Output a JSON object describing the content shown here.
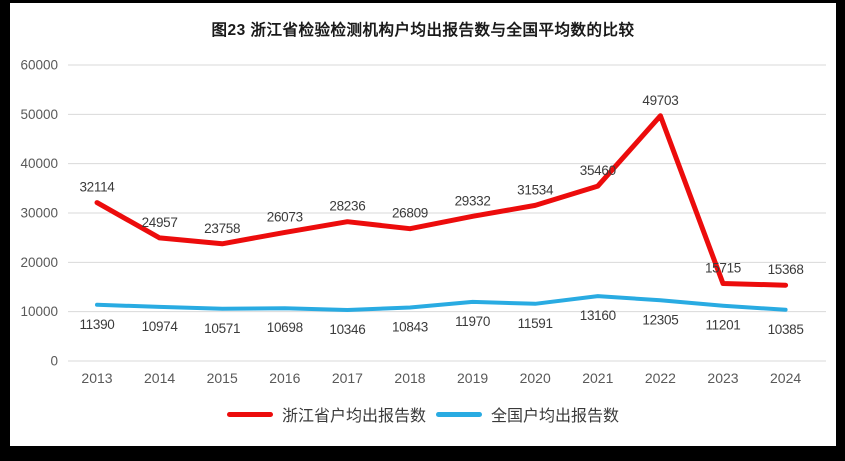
{
  "frame": {
    "border_color": "#000000",
    "background_color": "#ffffff"
  },
  "chart_data": {
    "type": "line",
    "title": "图23  浙江省检验检测机构户均出报告数与全国平均数的比较",
    "categories": [
      "2013",
      "2014",
      "2015",
      "2016",
      "2017",
      "2018",
      "2019",
      "2020",
      "2021",
      "2022",
      "2023",
      "2024"
    ],
    "series": [
      {
        "name": "浙江省户均出报告数",
        "color": "#ec0c0c",
        "values": [
          32114,
          24957,
          23758,
          26073,
          28236,
          26809,
          29332,
          31534,
          35460,
          49703,
          15715,
          15368
        ],
        "label_position": "above",
        "stroke_width": 5
      },
      {
        "name": "全国户均出报告数",
        "color": "#29abe2",
        "values": [
          11390,
          10974,
          10571,
          10698,
          10346,
          10843,
          11970,
          11591,
          13160,
          12305,
          11201,
          10385
        ],
        "label_position": "below",
        "stroke_width": 4
      }
    ],
    "xlabel": "",
    "ylabel": "",
    "ylim": [
      0,
      60000
    ],
    "ytick_step": 10000,
    "ytick_labels": [
      "0",
      "10000",
      "20000",
      "30000",
      "40000",
      "50000",
      "60000"
    ],
    "grid": "horizontal",
    "gridline_color": "#d9d9d9",
    "axis_text_color": "#595959",
    "data_label_color": "#3b3b3b",
    "legend_position": "bottom"
  }
}
